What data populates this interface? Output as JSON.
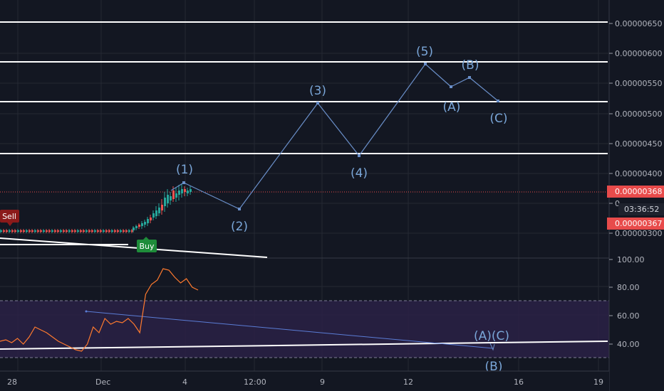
{
  "price_axis": {
    "labels": [
      "0.00000650",
      "0.00000600",
      "0.00000550",
      "0.00000500",
      "0.00000450",
      "0.00000400",
      "0.00000300"
    ],
    "current_price": "0.00000368",
    "countdown": "03:36:52",
    "bid_price": "0.00000367",
    "stub_label": "0"
  },
  "rsi_axis": {
    "labels": [
      "100.00",
      "80.00",
      "60.00",
      "40.00"
    ]
  },
  "time_axis": {
    "labels": [
      "28",
      "Dec",
      "4",
      "12:00",
      "9",
      "12",
      "16",
      "19"
    ]
  },
  "signals": {
    "sell": "Sell",
    "buy": "Buy"
  },
  "waves": {
    "w1": "(1)",
    "w2": "(2)",
    "w3": "(3)",
    "w4": "(4)",
    "w5": "(5)",
    "wA": "(A)",
    "wB": "(B)",
    "wC": "(C)"
  },
  "rsi_labels": {
    "overlap": "(A)(C)",
    "below": "(B)"
  },
  "colors": {
    "background": "#131722",
    "grid": "#242833",
    "wave_line": "#6a8fc9",
    "rsi_line": "#ff7a2e",
    "rsi_band": "#2a2145",
    "price_tag": "#e84b4b",
    "sell_tag": "#8b1a1a",
    "buy_tag": "#1e8c3a",
    "candle_up": "#26a69a",
    "candle_down": "#ef5350"
  },
  "chart_data": [
    {
      "type": "line",
      "series": [
        {
          "x": [
            "(1)",
            "(2)",
            "(3)",
            "(4)",
            "(5)",
            "(A)",
            "(B)",
            "(C)"
          ],
          "values": [
            3.82e-06,
            3.58e-06,
            5.18e-06,
            4.3e-06,
            5.8e-06,
            5.46e-06,
            5.6e-06,
            5.22e-06
          ]
        }
      ],
      "ylim": [
        2.8e-06,
        6.8e-06
      ]
    },
    {
      "type": "line",
      "series": [
        {
          "values": [
            42,
            43,
            41,
            44,
            40,
            45,
            52,
            50,
            48,
            45,
            42,
            40,
            38,
            36,
            35,
            40,
            52,
            48,
            58,
            54,
            56,
            55,
            58,
            54,
            48,
            75,
            82,
            85,
            93,
            92,
            87,
            83,
            86,
            80,
            78
          ]
        }
      ],
      "ylim": [
        30,
        100
      ]
    }
  ]
}
